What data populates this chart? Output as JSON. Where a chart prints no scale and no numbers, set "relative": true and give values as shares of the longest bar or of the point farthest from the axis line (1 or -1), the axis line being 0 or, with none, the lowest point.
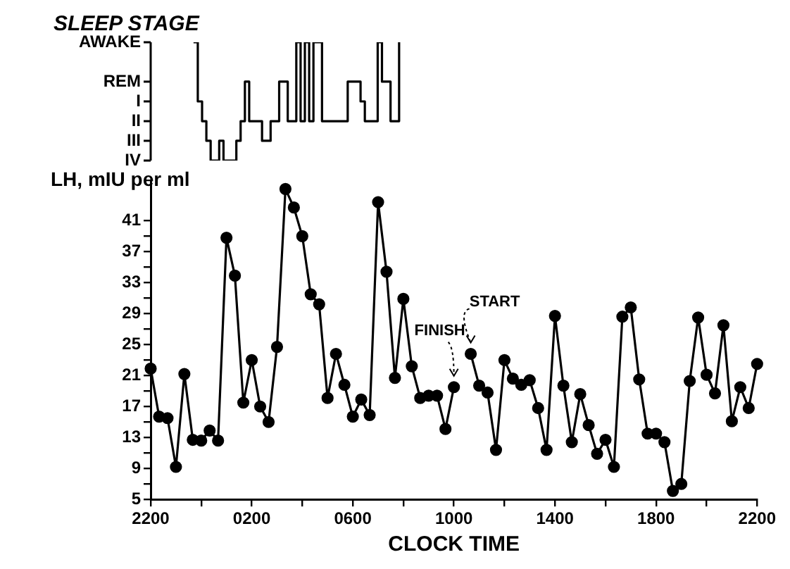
{
  "chart_data": [
    {
      "type": "step",
      "title": "SLEEP STAGE",
      "color": "#000000",
      "relative": true,
      "categories": [
        null,
        null,
        null,
        null,
        null,
        null,
        null,
        null,
        null,
        null,
        null,
        null,
        null,
        null,
        null,
        null,
        null,
        null,
        null,
        null,
        null,
        null,
        null,
        null,
        null,
        null,
        null,
        null,
        null,
        null,
        null,
        null,
        null,
        null,
        null,
        null,
        null,
        null,
        null,
        null,
        null,
        null,
        null,
        null,
        null,
        null,
        null,
        null,
        null,
        null,
        null,
        null,
        null,
        null,
        null,
        null,
        null,
        null,
        null,
        null,
        null,
        null,
        null,
        null,
        null,
        null,
        null,
        null,
        null,
        null,
        null,
        null,
        null,
        null,
        null,
        null,
        null,
        null,
        null,
        null,
        null,
        null,
        null,
        null,
        null,
        null,
        null,
        null,
        null,
        null,
        null,
        null,
        null,
        null,
        null,
        null,
        null,
        null,
        null,
        null,
        null,
        null,
        null,
        null,
        null,
        null,
        null,
        null,
        null,
        null,
        null,
        null,
        null,
        null,
        null,
        null,
        null,
        null,
        null,
        null,
        null,
        null,
        null,
        null,
        null,
        null,
        null,
        null,
        null,
        null,
        null,
        null,
        null,
        null,
        null,
        null,
        null,
        null,
        null,
        null,
        null,
        null,
        null,
        null,
        null
      ],
      "values": [
        null,
        null,
        null,
        null,
        null,
        null,
        null,
        null,
        null,
        null,
        1,
        0.5,
        0.333,
        0.167,
        0,
        0,
        0.167,
        0,
        0,
        0,
        0.167,
        0.333,
        0.667,
        0.333,
        0.333,
        0.333,
        0.167,
        0.167,
        0.333,
        0.333,
        0.667,
        0.667,
        0.333,
        0.333,
        1,
        0.333,
        1,
        0.333,
        1,
        1,
        0.333,
        0.333,
        0.333,
        0.333,
        0.333,
        0.333,
        0.667,
        0.667,
        0.667,
        0.5,
        0.333,
        0.333,
        0.333,
        1,
        0.667,
        0.667,
        0.333,
        0.333,
        1,
        null,
        null,
        null,
        null,
        null,
        null,
        null,
        null,
        null,
        null,
        null,
        null,
        null,
        null,
        null,
        null,
        null,
        null,
        null,
        null,
        null,
        null,
        null,
        null,
        null,
        null,
        null,
        null,
        null,
        null,
        null,
        null,
        null,
        null,
        null,
        null,
        null,
        null,
        null,
        null,
        null,
        null,
        null,
        null,
        null,
        null,
        null,
        null,
        null,
        null,
        null,
        null,
        null,
        null,
        null,
        null,
        null,
        null,
        null,
        null,
        null,
        null,
        null,
        null,
        null,
        null,
        null,
        null,
        null,
        null,
        null,
        null,
        null,
        null,
        null,
        null,
        null,
        null,
        null,
        null,
        null,
        null,
        null,
        null,
        null,
        null
      ],
      "annotations": [
        "AWAKE",
        "REM",
        "I",
        "II",
        "III",
        "IV"
      ]
    },
    {
      "type": "line",
      "xlabel": "CLOCK TIME",
      "ylabel": "LH, mIU per ml",
      "color": "#000000",
      "marker": "circle",
      "categories": [
        "2200",
        null,
        null,
        null,
        null,
        null,
        null,
        null,
        null,
        null,
        null,
        null,
        "0200",
        null,
        null,
        null,
        null,
        null,
        null,
        null,
        null,
        null,
        null,
        null,
        "0600",
        null,
        null,
        null,
        null,
        null,
        null,
        null,
        null,
        null,
        null,
        null,
        "1000",
        null,
        null,
        null,
        null,
        null,
        null,
        null,
        null,
        null,
        null,
        null,
        "1400",
        null,
        null,
        null,
        null,
        null,
        null,
        null,
        null,
        null,
        null,
        null,
        "1800",
        null,
        null,
        null,
        null,
        null,
        null,
        null,
        null,
        null,
        null,
        null,
        "2200"
      ],
      "values": [
        21.9,
        15.7,
        15.5,
        9.2,
        21.2,
        12.7,
        12.6,
        13.9,
        12.6,
        38.8,
        33.9,
        17.5,
        23.0,
        17.0,
        15.0,
        24.7,
        45.1,
        42.7,
        39.0,
        31.5,
        30.2,
        18.1,
        23.8,
        19.8,
        15.7,
        17.9,
        15.9,
        43.4,
        34.4,
        20.7,
        30.9,
        22.2,
        18.1,
        18.4,
        18.4,
        14.1,
        19.5,
        null,
        23.8,
        19.7,
        18.8,
        11.4,
        23.0,
        20.6,
        19.8,
        20.4,
        16.8,
        11.4,
        28.7,
        19.7,
        12.4,
        18.6,
        14.6,
        10.9,
        12.7,
        9.2,
        28.6,
        29.8,
        20.5,
        13.5,
        13.5,
        12.4,
        6.1,
        7.0,
        20.3,
        28.5,
        21.1,
        18.7,
        27.5,
        15.1,
        19.5,
        16.8,
        22.5
      ],
      "ylim": [
        5,
        46
      ],
      "yticks": [
        5,
        {
          "value": 7,
          "label": null
        },
        9,
        {
          "value": 11,
          "label": null
        },
        13,
        {
          "value": 15,
          "label": null
        },
        17,
        {
          "value": 19,
          "label": null
        },
        21,
        {
          "value": 23,
          "label": null
        },
        25,
        {
          "value": 27,
          "label": null
        },
        29,
        {
          "value": 31,
          "label": null
        },
        33,
        {
          "value": 35,
          "label": null
        },
        37,
        {
          "value": 39,
          "label": null
        },
        41
      ],
      "annotations": [
        "FINISH",
        "START"
      ]
    }
  ]
}
